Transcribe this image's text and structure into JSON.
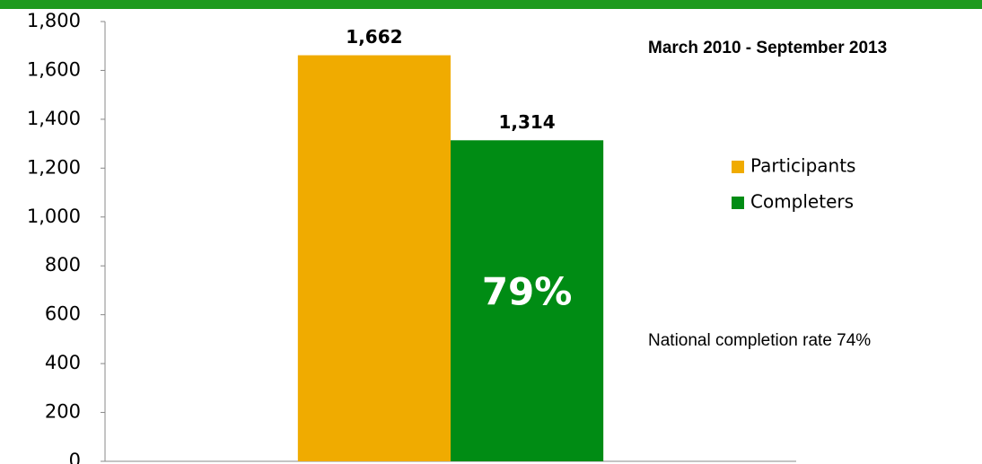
{
  "chart_data": {
    "type": "bar",
    "categories": [
      null
    ],
    "series": [
      {
        "name": "Participants",
        "color": "#f0ab00",
        "values": [
          1662
        ],
        "value_labels": [
          "1,662"
        ]
      },
      {
        "name": "Completers",
        "color": "#008c14",
        "values": [
          1314
        ],
        "value_labels": [
          "1,314"
        ]
      }
    ],
    "ylim": [
      0,
      1800
    ],
    "yticks": [
      0,
      200,
      400,
      600,
      800,
      {
        "value": 1000,
        "label": "1,000"
      },
      {
        "value": 1200,
        "label": "1,200"
      },
      {
        "value": 1400,
        "label": "1,400"
      },
      {
        "value": 1600,
        "label": "1,600"
      },
      {
        "value": 1800,
        "label": "1,800"
      }
    ],
    "legend": "right",
    "annotations": [
      "March 2010  - September 2013",
      "79%",
      "National completion rate 74%"
    ]
  }
}
